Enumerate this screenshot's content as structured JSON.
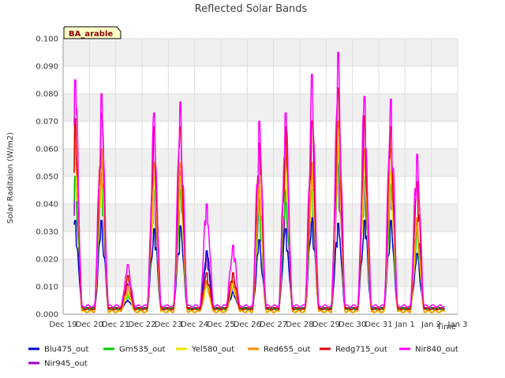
{
  "chart_data": {
    "type": "line",
    "title": "Reflected Solar Bands",
    "ylabel": "Solar Raditaion (W/m2)",
    "xlabel": "Time",
    "badge": "BA_arable",
    "ylim": [
      0.0,
      0.1
    ],
    "xlim": [
      0,
      15
    ],
    "yticks": [
      0.0,
      0.01,
      0.02,
      0.03,
      0.04,
      0.05,
      0.06,
      0.07,
      0.08,
      0.09,
      0.1
    ],
    "ytick_labels": [
      "0.000",
      "0.010",
      "0.020",
      "0.030",
      "0.040",
      "0.050",
      "0.060",
      "0.070",
      "0.080",
      "0.090",
      "0.100"
    ],
    "xticks": [
      0,
      1,
      2,
      3,
      4,
      5,
      6,
      7,
      8,
      9,
      10,
      11,
      12,
      13,
      14,
      15
    ],
    "xtick_labels": [
      "Dec 19",
      "Dec 20",
      "Dec 21",
      "Dec 22",
      "Dec 23",
      "Dec 24",
      "Dec 25",
      "Dec 26",
      "Dec 27",
      "Dec 28",
      "Dec 29",
      "Dec 30",
      "Dec 31",
      "Jan 1",
      "Jan 2",
      "Jan 3"
    ],
    "grid": true,
    "legend_position": "bottom",
    "x_note": "x values are days since Dec 19",
    "series": [
      {
        "name": "Blu475_out",
        "color": "#0000cc",
        "baseline": 0.002,
        "peaks": [
          0.034,
          0.034,
          0.005,
          0.031,
          0.032,
          0.023,
          0.008,
          0.027,
          0.031,
          0.035,
          0.033,
          0.034,
          0.034,
          0.022
        ]
      },
      {
        "name": "Grn535_out",
        "color": "#00cc00",
        "baseline": 0.002,
        "peaks": [
          0.05,
          0.05,
          0.007,
          0.045,
          0.045,
          0.012,
          0.01,
          0.04,
          0.045,
          0.045,
          0.061,
          0.05,
          0.047,
          0.03
        ]
      },
      {
        "name": "Yel580_out",
        "color": "#e8e800",
        "baseline": 0.001,
        "peaks": [
          0.062,
          0.055,
          0.008,
          0.05,
          0.05,
          0.01,
          0.011,
          0.045,
          0.058,
          0.05,
          0.061,
          0.055,
          0.052,
          0.032
        ]
      },
      {
        "name": "Red655_out",
        "color": "#ff8c00",
        "baseline": 0.001,
        "peaks": [
          0.066,
          0.06,
          0.01,
          0.055,
          0.055,
          0.012,
          0.012,
          0.05,
          0.063,
          0.055,
          0.07,
          0.06,
          0.06,
          0.035
        ]
      },
      {
        "name": "Redg715_out",
        "color": "#dd0000",
        "baseline": 0.002,
        "peaks": [
          0.071,
          0.073,
          0.014,
          0.068,
          0.068,
          0.015,
          0.015,
          0.062,
          0.068,
          0.07,
          0.082,
          0.072,
          0.068,
          0.048
        ]
      },
      {
        "name": "Nir840_out",
        "color": "#ff00ff",
        "baseline": 0.003,
        "peaks": [
          0.085,
          0.08,
          0.018,
          0.073,
          0.077,
          0.04,
          0.025,
          0.07,
          0.073,
          0.087,
          0.095,
          0.079,
          0.078,
          0.058
        ]
      },
      {
        "name": "Nir945_out",
        "color": "#9900cc",
        "baseline": 0.002,
        "peaks": [
          0.05,
          0.051,
          0.011,
          0.045,
          0.052,
          0.022,
          0.011,
          0.042,
          0.045,
          0.045,
          0.054,
          0.05,
          0.047,
          0.033
        ]
      }
    ]
  }
}
